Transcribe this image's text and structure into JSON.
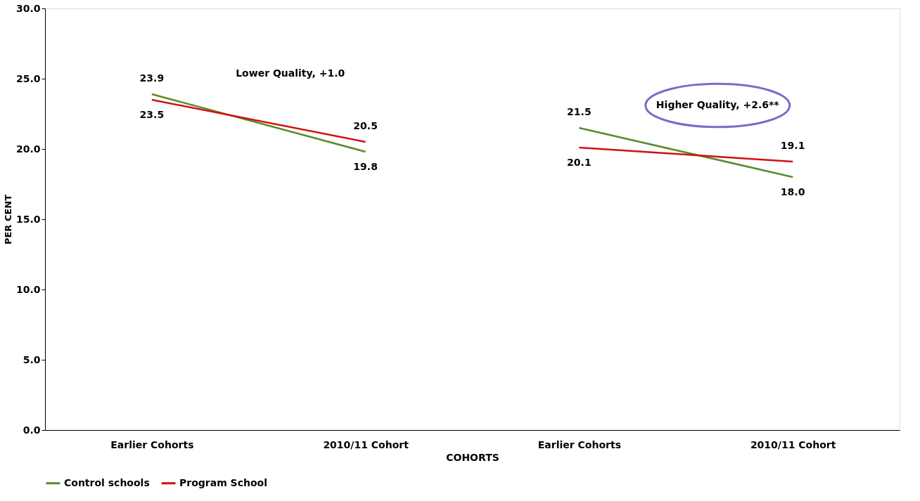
{
  "chart_data": {
    "type": "line",
    "categories": [
      "Earlier Cohorts",
      "2010/11 Cohort",
      "Earlier Cohorts",
      "2010/11 Cohort"
    ],
    "series": [
      {
        "name": "Control schools",
        "color": "#5a8a2e",
        "values": [
          23.9,
          19.8,
          null,
          null
        ],
        "value_labels": [
          "23.9",
          "19.8",
          null,
          null
        ]
      },
      {
        "name": "Program School",
        "color": "#d01010",
        "values": [
          23.5,
          20.5,
          null,
          null
        ],
        "value_labels": [
          "23.5",
          "20.5",
          null,
          null
        ]
      },
      {
        "color": "#5a8a2e",
        "values": [
          null,
          null,
          21.5,
          18.0
        ],
        "value_labels": [
          null,
          null,
          "21.5",
          "18.0"
        ]
      },
      {
        "color": "#d01010",
        "values": [
          null,
          null,
          20.1,
          19.1
        ],
        "value_labels": [
          null,
          null,
          "20.1",
          "19.1"
        ]
      }
    ],
    "xlabel": "COHORTS",
    "ylabel": "PER CENT",
    "ylim": [
      0,
      30
    ],
    "yticks": [
      {
        "value": 0,
        "label": "0.0"
      },
      {
        "value": 5,
        "label": "5.0"
      },
      {
        "value": 10,
        "label": "10.0"
      },
      {
        "value": 15,
        "label": "15.0"
      },
      {
        "value": 20,
        "label": "20.0"
      },
      {
        "value": 25,
        "label": "25.0"
      },
      {
        "value": 30,
        "label": "30.0"
      }
    ],
    "annotations": [
      "Lower Quality,  +1.0",
      "Higher Quality,  +2.6**"
    ],
    "grid": false,
    "legend": "bottom",
    "marker": "none",
    "line_style": "solid"
  }
}
